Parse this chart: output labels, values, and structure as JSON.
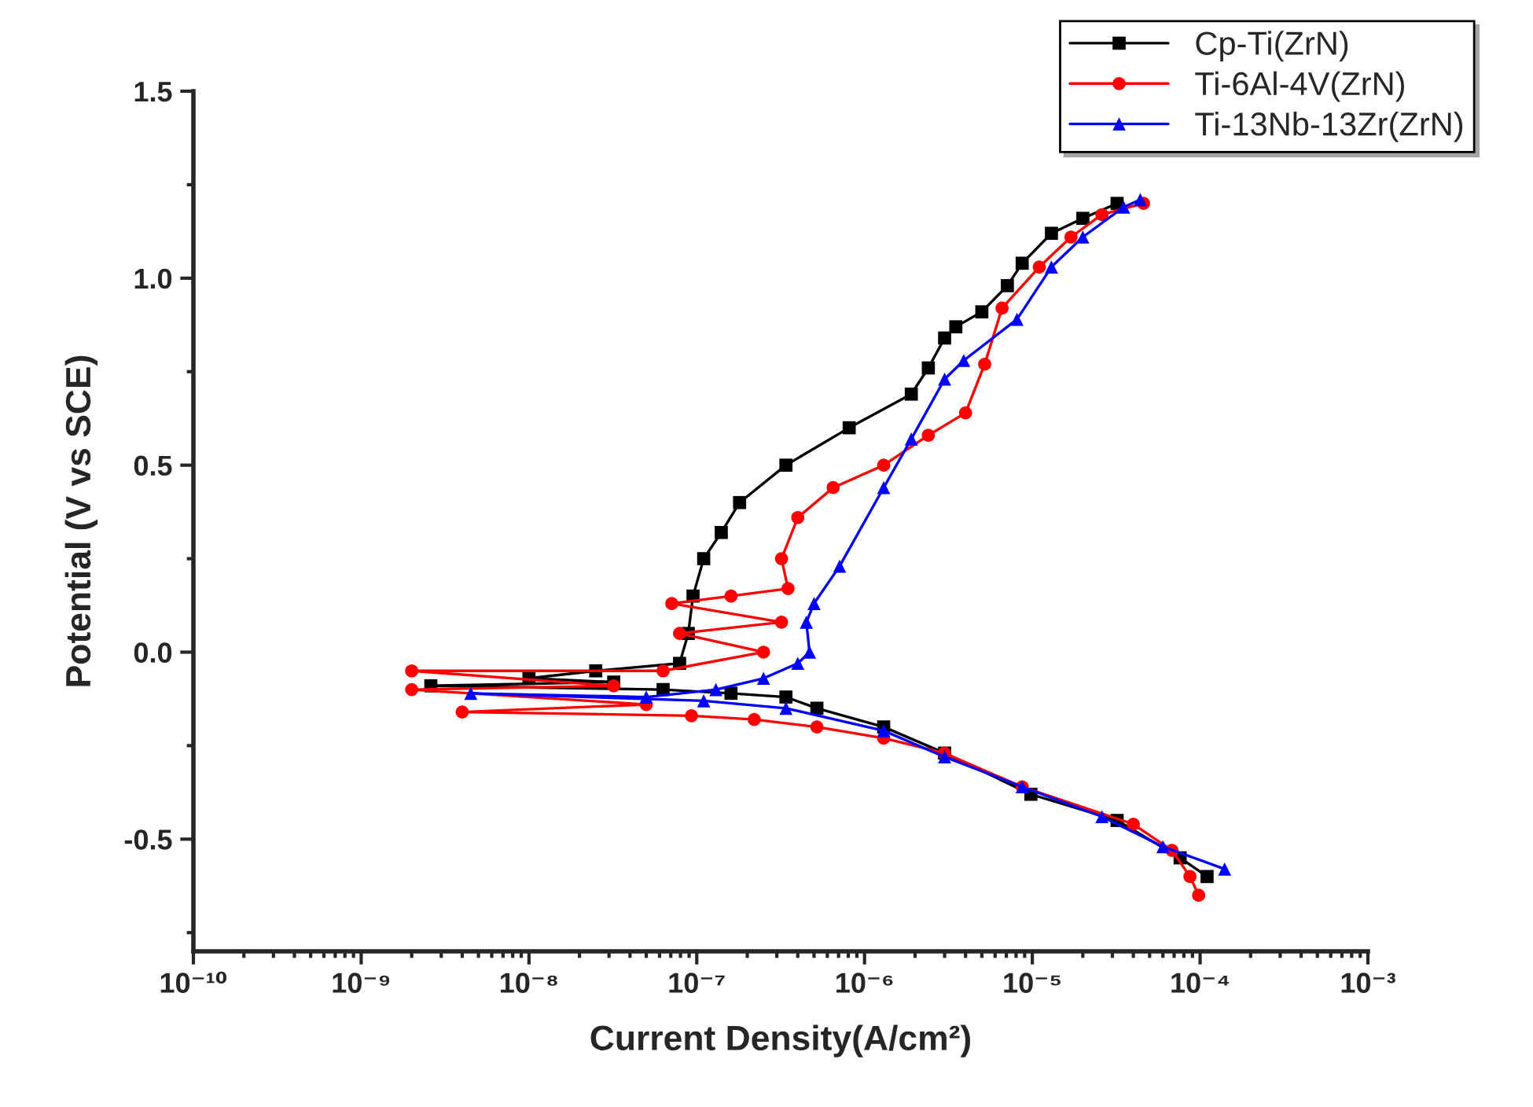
{
  "chart_data": {
    "type": "line",
    "xlabel": "Current Density(A/cm²)",
    "ylabel": "Potential (V vs SCE)",
    "log": "x",
    "xlim": [
      1e-10,
      0.001
    ],
    "ylim": [
      -0.8,
      1.5
    ],
    "xticks": [
      {
        "value": 1e-10,
        "label": "10⁻¹⁰"
      },
      {
        "value": 1e-09,
        "label": "10⁻⁹"
      },
      {
        "value": 1e-08,
        "label": "10⁻⁸"
      },
      {
        "value": 1e-07,
        "label": "10⁻⁷"
      },
      {
        "value": 1e-06,
        "label": "10⁻⁶"
      },
      {
        "value": 1e-05,
        "label": "10⁻⁵"
      },
      {
        "value": 0.0001,
        "label": "10⁻⁴"
      },
      {
        "value": 0.001,
        "label": "10⁻³"
      }
    ],
    "yticks": [
      {
        "value": -0.5,
        "label": "-0.5"
      },
      {
        "value": 0.0,
        "label": "0.0"
      },
      {
        "value": 0.5,
        "label": "0.5"
      },
      {
        "value": 1.0,
        "label": "1.0"
      },
      {
        "value": 1.5,
        "label": "1.5"
      }
    ],
    "grid": false,
    "legend": "top right",
    "series": [
      {
        "name": "Cp-Ti(ZrN)",
        "color": "#000000",
        "marker": "square",
        "x": [
          0.00011,
          7.6e-05,
          3.2e-05,
          9.8e-06,
          3e-06,
          1.3e-06,
          5.2e-07,
          3.4e-07,
          1.6e-07,
          6.3e-08,
          2.6e-09,
          3.2e-08,
          1e-08,
          2.5e-08,
          7.9e-08,
          8.9e-08,
          9.5e-08,
          1.1e-07,
          1.4e-07,
          1.8e-07,
          3.4e-07,
          8.1e-07,
          1.9e-06,
          2.4e-06,
          3e-06,
          3.5e-06,
          5e-06,
          7.1e-06,
          8.7e-06,
          1.3e-05,
          2e-05,
          3.2e-05
        ],
        "values": [
          -0.6,
          -0.55,
          -0.45,
          -0.38,
          -0.27,
          -0.2,
          -0.15,
          -0.12,
          -0.11,
          -0.1,
          -0.09,
          -0.08,
          -0.07,
          -0.05,
          -0.03,
          0.05,
          0.15,
          0.25,
          0.32,
          0.4,
          0.5,
          0.6,
          0.69,
          0.76,
          0.84,
          0.87,
          0.91,
          0.98,
          1.04,
          1.12,
          1.16,
          1.2
        ]
      },
      {
        "name": "Ti-6Al-4V(ZrN)",
        "color": "#ff0000",
        "marker": "circle",
        "x": [
          9.8e-05,
          8.7e-05,
          6.8e-05,
          4e-05,
          8.7e-06,
          3e-06,
          1.3e-06,
          5.2e-07,
          2.2e-07,
          9.3e-08,
          4e-09,
          5e-08,
          2e-09,
          3.2e-08,
          2e-09,
          6.3e-08,
          2.5e-07,
          7.9e-08,
          3.2e-07,
          7.1e-08,
          1.6e-07,
          3.5e-07,
          3.2e-07,
          4e-07,
          6.5e-07,
          1.3e-06,
          2.4e-06,
          4e-06,
          5.2e-06,
          6.6e-06,
          1.1e-05,
          1.7e-05,
          2.6e-05,
          4.6e-05
        ],
        "values": [
          -0.65,
          -0.6,
          -0.53,
          -0.46,
          -0.36,
          -0.27,
          -0.23,
          -0.2,
          -0.18,
          -0.17,
          -0.16,
          -0.14,
          -0.1,
          -0.09,
          -0.05,
          -0.05,
          0.0,
          0.05,
          0.08,
          0.13,
          0.15,
          0.17,
          0.25,
          0.36,
          0.44,
          0.5,
          0.58,
          0.64,
          0.77,
          0.92,
          1.03,
          1.11,
          1.17,
          1.2
        ]
      },
      {
        "name": "Ti-13Nb-13Zr(ZrN)",
        "color": "#0000ff",
        "marker": "triangle",
        "x": [
          0.00014,
          6e-05,
          2.6e-05,
          8.7e-06,
          3e-06,
          1.3e-06,
          3.4e-07,
          1.1e-07,
          4.5e-09,
          5e-08,
          1.3e-07,
          2.5e-07,
          4e-07,
          4.7e-07,
          4.5e-07,
          5e-07,
          7.1e-07,
          1.3e-06,
          1.9e-06,
          3e-06,
          3.9e-06,
          8.1e-06,
          1.3e-05,
          2e-05,
          3.5e-05,
          4.4e-05
        ],
        "values": [
          -0.58,
          -0.52,
          -0.44,
          -0.36,
          -0.28,
          -0.21,
          -0.15,
          -0.13,
          -0.11,
          -0.12,
          -0.1,
          -0.07,
          -0.03,
          0.0,
          0.08,
          0.13,
          0.23,
          0.44,
          0.57,
          0.73,
          0.78,
          0.89,
          1.03,
          1.11,
          1.19,
          1.21
        ]
      }
    ]
  }
}
